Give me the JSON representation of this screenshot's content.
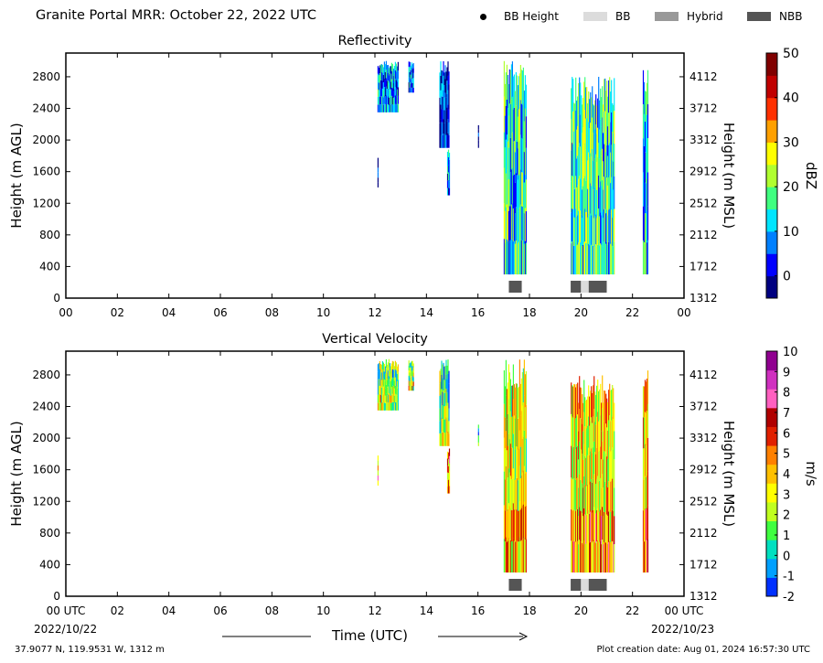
{
  "header": {
    "title": "Granite Portal MRR:  October 22, 2022 UTC",
    "legend": [
      {
        "label": "BB Height",
        "kind": "dot",
        "color": "#000000"
      },
      {
        "label": "BB",
        "kind": "box",
        "color": "#dcdcdc"
      },
      {
        "label": "Hybrid",
        "kind": "box",
        "color": "#999999"
      },
      {
        "label": "NBB",
        "kind": "box",
        "color": "#555555"
      }
    ]
  },
  "footer": {
    "location": "37.9077 N, 119.9531 W, 1312 m",
    "created": "Plot creation date: Aug 01, 2024 16:57:30 UTC",
    "start_date": "2022/10/22",
    "end_date": "2022/10/23",
    "xlabel": "Time (UTC)"
  },
  "chart_data": [
    {
      "type": "heatmap",
      "title": "Reflectivity",
      "ylabel": "Height (m AGL)",
      "y2label": "Height (m MSL)",
      "colorbar_label": "dBZ",
      "x_ticks": [
        "00",
        "02",
        "04",
        "06",
        "08",
        "10",
        "12",
        "14",
        "16",
        "18",
        "20",
        "22",
        "00"
      ],
      "y_ticks": [
        0,
        400,
        800,
        1200,
        1600,
        2000,
        2400,
        2800
      ],
      "y2_ticks": [
        1312,
        1712,
        2112,
        2512,
        2912,
        3312,
        3712,
        4112
      ],
      "xlim": [
        0,
        24
      ],
      "ylim": [
        0,
        3100
      ],
      "cbar_ticks": [
        0,
        10,
        20,
        30,
        40,
        50
      ],
      "cbar_range": [
        -5,
        50
      ],
      "colormap": [
        "#000080",
        "#0000ff",
        "#0080ff",
        "#00e5ff",
        "#40ff80",
        "#b0ff30",
        "#ffff00",
        "#ffa000",
        "#ff3000",
        "#c00000",
        "#800000"
      ],
      "echoes": [
        {
          "t0": 12.1,
          "t1": 12.9,
          "h0": 2350,
          "h1": 3000,
          "value": 8
        },
        {
          "t0": 13.3,
          "t1": 13.5,
          "h0": 2600,
          "h1": 3000,
          "value": 7
        },
        {
          "t0": 12.1,
          "t1": 12.15,
          "h0": 1400,
          "h1": 1800,
          "value": -3
        },
        {
          "t0": 14.5,
          "t1": 14.9,
          "h0": 1900,
          "h1": 3000,
          "value": 2
        },
        {
          "t0": 14.8,
          "t1": 14.9,
          "h0": 1300,
          "h1": 1900,
          "value": 5
        },
        {
          "t0": 16.0,
          "t1": 16.05,
          "h0": 1900,
          "h1": 2200,
          "value": -2
        },
        {
          "t0": 17.0,
          "t1": 17.9,
          "h0": 300,
          "h1": 3000,
          "value": 14
        },
        {
          "t0": 19.6,
          "t1": 21.3,
          "h0": 300,
          "h1": 2800,
          "value": 16
        },
        {
          "t0": 22.4,
          "t1": 22.6,
          "h0": 300,
          "h1": 3000,
          "value": 12
        }
      ],
      "bright_band": [
        {
          "t0": 17.2,
          "t1": 17.7,
          "type": "NBB"
        },
        {
          "t0": 19.6,
          "t1": 20.0,
          "type": "NBB"
        },
        {
          "t0": 20.0,
          "t1": 20.3,
          "type": "BB"
        },
        {
          "t0": 20.3,
          "t1": 21.0,
          "type": "NBB"
        }
      ]
    },
    {
      "type": "heatmap",
      "title": "Vertical Velocity",
      "ylabel": "Height (m AGL)",
      "y2label": "Height (m MSL)",
      "colorbar_label": "m/s",
      "x_ticks": [
        "00 UTC",
        "02",
        "04",
        "06",
        "08",
        "10",
        "12",
        "14",
        "16",
        "18",
        "20",
        "22",
        "00 UTC"
      ],
      "y_ticks": [
        0,
        400,
        800,
        1200,
        1600,
        2000,
        2400,
        2800
      ],
      "y2_ticks": [
        1312,
        1712,
        2112,
        2512,
        2912,
        3312,
        3712,
        4112
      ],
      "xlim": [
        0,
        24
      ],
      "ylim": [
        0,
        3100
      ],
      "cbar_ticks": [
        -2,
        -1,
        0,
        1,
        2,
        3,
        4,
        5,
        6,
        7,
        8,
        9,
        10
      ],
      "cbar_range": [
        -2,
        10
      ],
      "colormap": [
        "#0030ff",
        "#00a0ff",
        "#00e0c0",
        "#40ff40",
        "#c0ff20",
        "#ffff00",
        "#ffc000",
        "#ff8000",
        "#e02000",
        "#b00000",
        "#ff60c0",
        "#d030c0",
        "#900090"
      ],
      "echoes": [
        {
          "t0": 12.1,
          "t1": 12.9,
          "h0": 2350,
          "h1": 3000,
          "value": 1.5
        },
        {
          "t0": 13.3,
          "t1": 13.5,
          "h0": 2600,
          "h1": 3000,
          "value": 1.5
        },
        {
          "t0": 12.1,
          "t1": 12.15,
          "h0": 1400,
          "h1": 1800,
          "value": 4.5
        },
        {
          "t0": 14.5,
          "t1": 14.9,
          "h0": 1900,
          "h1": 3000,
          "value": 1.2
        },
        {
          "t0": 14.8,
          "t1": 14.9,
          "h0": 1300,
          "h1": 1900,
          "value": 5
        },
        {
          "t0": 16.0,
          "t1": 16.05,
          "h0": 1900,
          "h1": 2200,
          "value": 1
        },
        {
          "t0": 17.0,
          "t1": 17.9,
          "h0": 300,
          "h1": 3000,
          "value": 3
        },
        {
          "t0": 19.6,
          "t1": 21.3,
          "h0": 300,
          "h1": 2800,
          "value": 3.5
        },
        {
          "t0": 22.4,
          "t1": 22.6,
          "h0": 300,
          "h1": 3000,
          "value": 4
        }
      ],
      "bright_band": [
        {
          "t0": 17.2,
          "t1": 17.7,
          "type": "NBB"
        },
        {
          "t0": 19.6,
          "t1": 20.0,
          "type": "NBB"
        },
        {
          "t0": 20.0,
          "t1": 20.3,
          "type": "BB"
        },
        {
          "t0": 20.3,
          "t1": 21.0,
          "type": "NBB"
        }
      ]
    }
  ]
}
